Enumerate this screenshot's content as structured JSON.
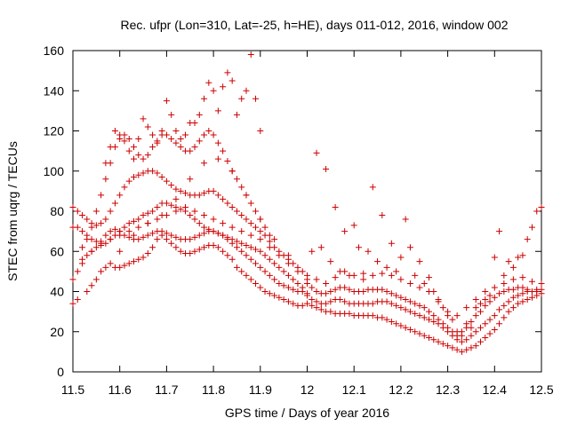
{
  "chart_data": {
    "type": "scatter",
    "title": "Rec. ufpr (Lon=310, Lat=-25, h=HE), days 011-012, 2016, window 002",
    "xlabel": "GPS time / Days of year 2016",
    "ylabel": "STEC from uqrg / TECUs",
    "xlim": [
      11.5,
      12.5
    ],
    "ylim": [
      0,
      160
    ],
    "xticks": [
      "11.5",
      "11.6",
      "11.7",
      "11.8",
      "11.9",
      "12",
      "12.1",
      "12.2",
      "12.3",
      "12.4",
      "12.5"
    ],
    "yticks": [
      "0",
      "20",
      "40",
      "60",
      "80",
      "100",
      "120",
      "140",
      "160"
    ],
    "grid": false,
    "marker": "+",
    "color": "#cc0000",
    "series": [
      {
        "x": [
          11.5,
          11.51,
          11.53,
          11.54,
          11.55,
          11.56,
          11.57,
          11.58,
          11.59,
          11.6,
          11.61,
          11.62,
          11.63,
          11.64,
          11.65,
          11.66,
          11.67,
          11.68,
          11.69,
          11.7,
          11.71,
          11.72,
          11.73,
          11.74,
          11.75,
          11.76,
          11.77,
          11.78,
          11.79,
          11.8,
          11.81,
          11.82,
          11.83,
          11.84,
          11.85,
          11.86,
          11.87,
          11.88,
          11.89,
          11.9,
          11.91,
          11.92,
          11.93,
          11.94,
          11.95,
          11.96,
          11.97,
          11.98,
          11.99
        ],
        "y": [
          34,
          36,
          40,
          43,
          46,
          50,
          52,
          54,
          52,
          52,
          53,
          54,
          55,
          56,
          57,
          59,
          62,
          66,
          68,
          66,
          64,
          62,
          60,
          59,
          59,
          60,
          61,
          62,
          63,
          63,
          62,
          60,
          58,
          56,
          52,
          50,
          48,
          46,
          44,
          42,
          40,
          39,
          38,
          37,
          36,
          35,
          34,
          33,
          33
        ]
      },
      {
        "x": [
          11.5,
          11.51,
          11.52,
          11.53,
          11.54,
          11.55,
          11.56,
          11.57,
          11.58,
          11.59,
          11.6,
          11.61,
          11.62,
          11.63,
          11.64,
          11.65,
          11.66,
          11.67,
          11.68,
          11.69,
          11.7,
          11.71,
          11.72,
          11.73,
          11.74,
          11.75,
          11.76,
          11.77,
          11.78,
          11.79,
          11.8,
          11.81,
          11.82,
          11.83,
          11.84,
          11.85,
          11.86,
          11.87,
          11.88,
          11.89,
          11.9,
          11.91,
          11.92,
          11.93,
          11.94,
          11.95,
          11.96,
          11.97,
          11.98,
          11.99,
          12.0
        ],
        "y": [
          46,
          50,
          54,
          58,
          60,
          62,
          65,
          68,
          70,
          71,
          70,
          68,
          67,
          66,
          66,
          67,
          68,
          69,
          70,
          70,
          69,
          68,
          67,
          66,
          66,
          66,
          67,
          68,
          69,
          70,
          70,
          69,
          68,
          66,
          64,
          62,
          60,
          58,
          56,
          54,
          52,
          50,
          48,
          46,
          44,
          43,
          42,
          41,
          40,
          40,
          39
        ]
      },
      {
        "x": [
          11.5,
          11.51,
          11.52,
          11.53,
          11.54,
          11.55,
          11.56,
          11.57,
          11.58,
          11.59,
          11.6,
          11.61,
          11.62,
          11.63,
          11.64,
          11.65,
          11.66,
          11.67,
          11.68,
          11.69,
          11.7,
          11.71,
          11.72,
          11.73,
          11.74,
          11.75,
          11.76,
          11.77,
          11.78,
          11.79,
          11.8,
          11.81,
          11.82,
          11.83,
          11.84,
          11.85,
          11.86,
          11.87,
          11.88,
          11.89,
          11.9,
          11.91,
          11.92,
          11.93,
          11.94,
          11.95,
          11.96,
          11.97,
          11.98,
          11.99
        ],
        "y": [
          72,
          72,
          70,
          68,
          66,
          65,
          64,
          64,
          66,
          68,
          70,
          72,
          74,
          75,
          76,
          78,
          79,
          80,
          82,
          84,
          84,
          83,
          82,
          81,
          80,
          78,
          76,
          74,
          72,
          71,
          70,
          69,
          68,
          67,
          66,
          65,
          64,
          63,
          62,
          61,
          60,
          58,
          56,
          54,
          52,
          50,
          48,
          46,
          44,
          42
        ]
      },
      {
        "x": [
          11.5,
          11.51,
          11.52,
          11.53,
          11.54,
          11.55,
          11.56,
          11.57,
          11.58,
          11.59,
          11.6,
          11.61,
          11.62,
          11.63,
          11.64,
          11.65,
          11.66,
          11.67,
          11.68,
          11.69,
          11.7,
          11.71,
          11.72,
          11.73,
          11.74,
          11.75,
          11.76,
          11.77,
          11.78,
          11.79,
          11.8,
          11.81,
          11.82,
          11.83,
          11.84,
          11.85,
          11.86,
          11.87,
          11.88,
          11.89,
          11.9,
          11.91,
          11.92,
          11.93,
          11.94,
          11.95,
          11.96,
          11.97,
          11.98
        ],
        "y": [
          82,
          80,
          78,
          76,
          74,
          73,
          74,
          76,
          80,
          84,
          88,
          92,
          95,
          97,
          98,
          99,
          100,
          100,
          99,
          97,
          95,
          93,
          91,
          90,
          89,
          88,
          88,
          88,
          89,
          90,
          90,
          88,
          86,
          84,
          82,
          80,
          78,
          76,
          74,
          72,
          70,
          68,
          65,
          62,
          60,
          58,
          56,
          54,
          52
        ]
      },
      {
        "x": [
          11.52,
          11.53,
          11.54,
          11.55,
          11.56,
          11.57,
          11.58,
          11.59,
          11.6,
          11.61,
          11.62,
          11.63,
          11.64,
          11.65,
          11.66,
          11.67,
          11.68,
          11.69,
          11.7,
          11.71,
          11.72,
          11.73,
          11.74,
          11.75,
          11.76,
          11.77,
          11.78,
          11.79,
          11.8,
          11.81,
          11.82,
          11.83,
          11.84,
          11.85,
          11.86,
          11.87,
          11.88,
          11.89,
          11.9,
          11.91,
          11.92
        ],
        "y": [
          62,
          66,
          72,
          80,
          88,
          96,
          104,
          112,
          116,
          118,
          116,
          112,
          108,
          106,
          108,
          112,
          115,
          118,
          118,
          116,
          114,
          112,
          110,
          110,
          112,
          115,
          118,
          120,
          118,
          114,
          110,
          105,
          100,
          96,
          92,
          88,
          84,
          80,
          76,
          72,
          68
        ]
      },
      {
        "x": [
          11.57,
          11.58,
          11.59,
          11.6,
          11.61,
          11.62,
          11.63,
          11.64,
          11.65,
          11.66,
          11.67,
          11.68,
          11.69,
          11.7,
          11.71,
          11.72,
          11.73,
          11.74,
          11.75,
          11.76,
          11.77,
          11.78,
          11.79,
          11.8,
          11.81,
          11.82,
          11.83,
          11.84,
          11.85,
          11.86,
          11.87,
          11.88,
          11.89,
          11.9
        ],
        "y": [
          104,
          112,
          120,
          118,
          115,
          110,
          106,
          116,
          126,
          122,
          118,
          114,
          120,
          135,
          128,
          120,
          116,
          118,
          124,
          124,
          128,
          136,
          144,
          140,
          130,
          142,
          149,
          145,
          128,
          136,
          140,
          158,
          136,
          120
        ]
      },
      {
        "x": [
          11.6,
          11.63,
          11.66,
          11.69,
          11.72,
          11.75,
          11.78,
          11.81,
          11.84,
          11.87,
          11.9,
          11.93,
          11.96,
          11.99
        ],
        "y": [
          60,
          68,
          74,
          78,
          86,
          96,
          104,
          106,
          100,
          88,
          76,
          66,
          58,
          50
        ]
      },
      {
        "x": [
          12.0,
          12.01,
          12.02,
          12.03,
          12.04,
          12.05,
          12.06,
          12.07,
          12.08,
          12.09,
          12.1,
          12.11,
          12.12,
          12.13,
          12.14,
          12.15,
          12.16,
          12.17,
          12.18,
          12.19,
          12.2,
          12.21,
          12.22,
          12.23,
          12.24,
          12.25,
          12.26,
          12.27,
          12.28,
          12.29,
          12.3,
          12.31,
          12.32,
          12.33,
          12.34,
          12.35,
          12.36,
          12.37,
          12.38,
          12.39,
          12.4,
          12.41,
          12.42,
          12.43,
          12.44,
          12.45,
          12.46,
          12.47,
          12.48,
          12.49,
          12.5
        ],
        "y": [
          34,
          33,
          32,
          31,
          30,
          30,
          29,
          29,
          29,
          29,
          28,
          28,
          28,
          28,
          28,
          27,
          27,
          26,
          25,
          24,
          23,
          22,
          21,
          20,
          19,
          18,
          17,
          16,
          15,
          14,
          13,
          12,
          11,
          10,
          11,
          12,
          13,
          15,
          17,
          19,
          21,
          24,
          27,
          30,
          32,
          34,
          35,
          36,
          37,
          38,
          39
        ]
      },
      {
        "x": [
          12.0,
          12.01,
          12.02,
          12.03,
          12.04,
          12.05,
          12.06,
          12.07,
          12.08,
          12.09,
          12.1,
          12.11,
          12.12,
          12.13,
          12.14,
          12.15,
          12.16,
          12.17,
          12.18,
          12.19,
          12.2,
          12.21,
          12.22,
          12.23,
          12.24,
          12.25,
          12.26,
          12.27,
          12.28,
          12.29,
          12.3,
          12.31,
          12.32,
          12.33,
          12.34,
          12.35,
          12.36,
          12.37,
          12.38,
          12.39,
          12.4,
          12.41,
          12.42,
          12.43,
          12.44,
          12.45,
          12.46,
          12.47,
          12.48,
          12.49,
          12.5
        ],
        "y": [
          38,
          36,
          35,
          34,
          34,
          35,
          36,
          36,
          35,
          34,
          34,
          34,
          34,
          34,
          34,
          35,
          35,
          35,
          34,
          33,
          32,
          31,
          30,
          29,
          28,
          27,
          26,
          25,
          24,
          22,
          20,
          18,
          16,
          15,
          16,
          18,
          20,
          22,
          24,
          26,
          28,
          31,
          33,
          35,
          37,
          38,
          39,
          40,
          40,
          41,
          41
        ]
      },
      {
        "x": [
          12.0,
          12.01,
          12.02,
          12.03,
          12.04,
          12.05,
          12.06,
          12.07,
          12.08,
          12.09,
          12.1,
          12.11,
          12.12,
          12.13,
          12.14,
          12.15,
          12.16,
          12.17,
          12.18,
          12.19,
          12.2,
          12.21,
          12.22,
          12.23,
          12.24,
          12.25,
          12.26,
          12.27,
          12.28,
          12.29,
          12.3,
          12.31,
          12.32,
          12.33,
          12.34,
          12.35,
          12.36,
          12.37,
          12.38,
          12.39,
          12.4,
          12.41,
          12.42,
          12.43,
          12.44,
          12.45,
          12.46,
          12.47,
          12.48,
          12.49
        ],
        "y": [
          44,
          42,
          40,
          39,
          39,
          40,
          41,
          42,
          42,
          41,
          40,
          40,
          40,
          41,
          41,
          41,
          41,
          40,
          39,
          38,
          37,
          36,
          35,
          34,
          33,
          32,
          30,
          28,
          26,
          24,
          22,
          20,
          18,
          20,
          22,
          25,
          28,
          30,
          33,
          35,
          37,
          39,
          40,
          41,
          41,
          42,
          42,
          41,
          40,
          40
        ]
      },
      {
        "x": [
          12.0,
          12.02,
          12.04,
          12.06,
          12.08,
          12.1,
          12.12,
          12.14,
          12.16,
          12.18,
          12.2,
          12.22,
          12.24,
          12.26,
          12.28,
          12.3,
          12.32,
          12.34,
          12.36,
          12.38,
          12.4,
          12.42,
          12.44,
          12.46,
          12.48,
          12.5
        ],
        "y": [
          48,
          46,
          44,
          47,
          50,
          48,
          46,
          48,
          49,
          48,
          46,
          44,
          42,
          40,
          35,
          30,
          28,
          32,
          36,
          40,
          42,
          44,
          46,
          47,
          45,
          44
        ]
      },
      {
        "x": [
          12.01,
          12.02,
          12.03,
          12.04,
          12.05,
          12.06,
          12.07,
          12.08,
          12.09,
          12.1,
          12.11,
          12.12,
          12.13,
          12.14,
          12.15,
          12.16,
          12.17,
          12.18,
          12.19,
          12.2,
          12.21,
          12.22,
          12.23,
          12.24,
          12.25,
          12.26,
          12.27,
          12.28,
          12.29,
          12.3,
          12.31,
          12.32,
          12.33,
          12.34,
          12.35,
          12.36,
          12.37,
          12.38,
          12.39,
          12.4,
          12.41,
          12.42,
          12.43,
          12.44,
          12.45,
          12.46,
          12.47,
          12.48,
          12.49,
          12.5
        ],
        "y": [
          60,
          109,
          62,
          101,
          55,
          82,
          50,
          70,
          48,
          73,
          62,
          49,
          60,
          92,
          55,
          78,
          52,
          64,
          50,
          57,
          76,
          62,
          48,
          55,
          44,
          47,
          40,
          36,
          32,
          28,
          26,
          20,
          18,
          24,
          22,
          32,
          34,
          36,
          38,
          57,
          70,
          48,
          55,
          52,
          57,
          58,
          66,
          72,
          80,
          82
        ]
      },
      {
        "x": [
          11.52,
          11.54,
          11.56,
          11.58,
          11.6,
          11.62,
          11.64,
          11.66,
          11.68,
          11.7,
          11.72,
          11.74,
          11.76,
          11.78,
          11.8,
          11.82,
          11.84,
          11.86,
          11.88,
          11.9,
          11.92,
          11.94,
          11.96,
          11.98,
          12.0
        ],
        "y": [
          56,
          60,
          63,
          66,
          68,
          70,
          72,
          74,
          76,
          78,
          80,
          82,
          80,
          78,
          76,
          74,
          72,
          70,
          68,
          66,
          62,
          58,
          54,
          50,
          46
        ]
      }
    ]
  }
}
